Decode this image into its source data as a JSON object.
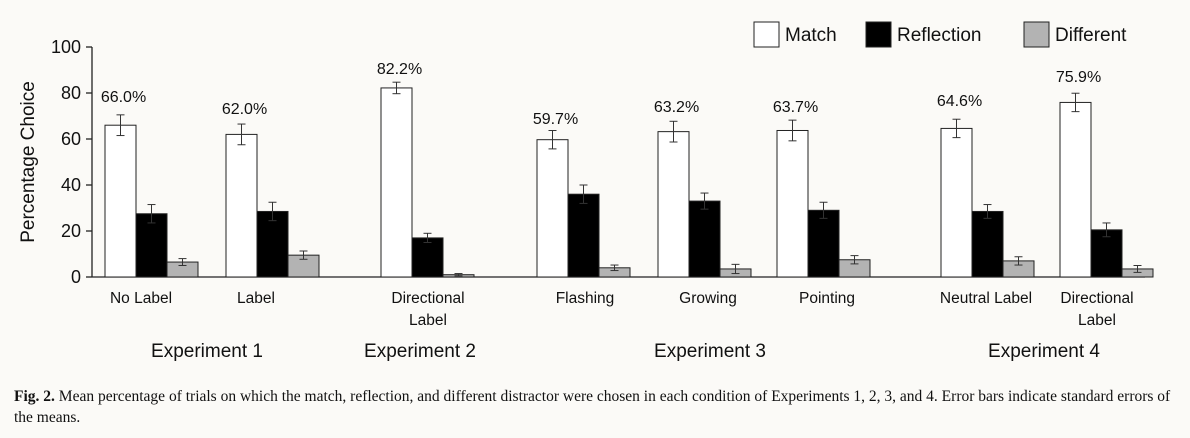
{
  "chart_data": {
    "type": "bar",
    "ylabel": "Percentage Choice",
    "xlabel": "",
    "ylim": [
      0,
      100
    ],
    "yticks": [
      0,
      20,
      40,
      60,
      80,
      100
    ],
    "legend_position": "top-right",
    "grid": false,
    "series": [
      {
        "name": "Match",
        "color": "#ffffff",
        "values": [
          66.0,
          62.0,
          82.2,
          59.7,
          63.2,
          63.7,
          64.6,
          75.9
        ],
        "errors": [
          4.5,
          4.5,
          2.5,
          4.0,
          4.5,
          4.5,
          4.0,
          4.0
        ]
      },
      {
        "name": "Reflection",
        "color": "#000000",
        "values": [
          27.5,
          28.5,
          17.0,
          36.0,
          33.0,
          29.0,
          28.5,
          20.5
        ],
        "errors": [
          4.0,
          4.0,
          2.0,
          4.0,
          3.5,
          3.5,
          3.0,
          3.0
        ]
      },
      {
        "name": "Different",
        "color": "#b3b3b3",
        "values": [
          6.5,
          9.5,
          1.0,
          4.0,
          3.5,
          7.5,
          7.0,
          3.5
        ],
        "errors": [
          1.5,
          1.8,
          0.5,
          1.2,
          2.0,
          1.8,
          1.8,
          1.5
        ]
      }
    ],
    "match_value_labels": [
      "66.0%",
      "62.0%",
      "82.2%",
      "59.7%",
      "63.2%",
      "63.7%",
      "64.6%",
      "75.9%"
    ],
    "conditions": [
      {
        "label": [
          "No Label"
        ],
        "experiment": 1
      },
      {
        "label": [
          "Label"
        ],
        "experiment": 1
      },
      {
        "label": [
          "Directional",
          "Label"
        ],
        "experiment": 2
      },
      {
        "label": [
          "Flashing"
        ],
        "experiment": 3
      },
      {
        "label": [
          "Growing"
        ],
        "experiment": 3
      },
      {
        "label": [
          "Pointing"
        ],
        "experiment": 3
      },
      {
        "label": [
          "Neutral Label"
        ],
        "experiment": 4
      },
      {
        "label": [
          "Directional",
          "Label"
        ],
        "experiment": 4
      }
    ],
    "experiments": [
      "Experiment 1",
      "Experiment 2",
      "Experiment 3",
      "Experiment 4"
    ]
  },
  "caption": {
    "figure_label": "Fig. 2.",
    "text": "Mean percentage of trials on which the match, reflection, and different distractor were chosen in each condition of Experiments 1, 2, 3, and 4. Error bars indicate standard errors of the means."
  }
}
